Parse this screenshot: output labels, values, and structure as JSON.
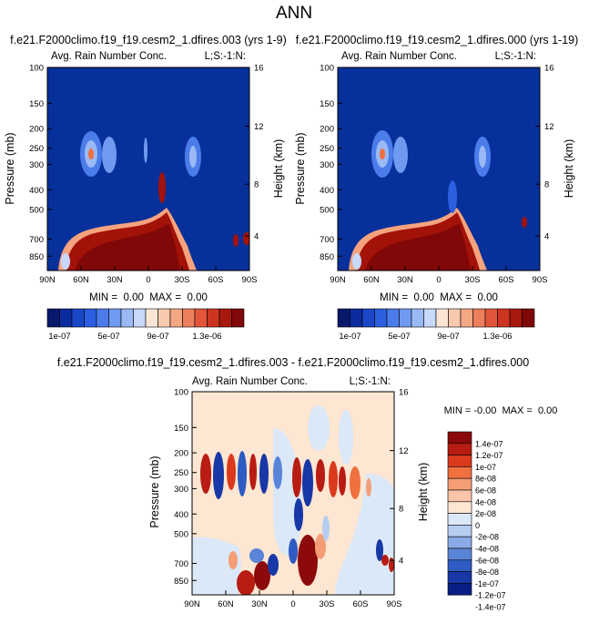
{
  "page_title": "ANN",
  "colors": {
    "rain_bg": "#08309a",
    "diff_bg": "#fde6d2",
    "outline": "#000000"
  },
  "chart_data": [
    {
      "type": "heatmap",
      "title": "f.e21.F2000climo.f19_f19.cesm2_1.dfires.003 (yrs 1-9)",
      "subtitle_left": "Avg. Rain Number Conc.",
      "subtitle_right": "L;S:-1:N:",
      "xlabel": "",
      "ylabel": "Pressure (mb)",
      "ylabel_right": "Height (km)",
      "x_tick_labels": [
        "90N",
        "60N",
        "30N",
        "0",
        "30S",
        "60S",
        "90S"
      ],
      "y_tick_labels": [
        "100",
        "150",
        "200",
        "250",
        "300",
        "400",
        "500",
        "700",
        "850"
      ],
      "y_tick_values": [
        100,
        150,
        200,
        250,
        300,
        400,
        500,
        700,
        850
      ],
      "ylim": [
        1000,
        100
      ],
      "y_scale": "log",
      "right_tick_labels": [
        "16",
        "12",
        "8",
        "4"
      ],
      "stats": "MIN =  0.00  MAX =  0.00",
      "colorbar_labels": [
        "1e-07",
        "5e-07",
        "9e-07",
        "1.3e-06"
      ]
    },
    {
      "type": "heatmap",
      "title": "f.e21.F2000climo.f19_f19.cesm2_1.dfires.000 (yrs 1-19)",
      "subtitle_left": "Avg. Rain Number Conc.",
      "subtitle_right": "L;S:-1:N:",
      "xlabel": "",
      "ylabel": "Pressure (mb)",
      "ylabel_right": "Height (km)",
      "x_tick_labels": [
        "90N",
        "60N",
        "30N",
        "0",
        "30S",
        "60S",
        "90S"
      ],
      "y_tick_labels": [
        "100",
        "150",
        "200",
        "250",
        "300",
        "400",
        "500",
        "700",
        "850"
      ],
      "y_tick_values": [
        100,
        150,
        200,
        250,
        300,
        400,
        500,
        700,
        850
      ],
      "ylim": [
        1000,
        100
      ],
      "y_scale": "log",
      "right_tick_labels": [
        "16",
        "12",
        "8",
        "4"
      ],
      "stats": "MIN =  0.00  MAX =  0.00",
      "colorbar_labels": [
        "1e-07",
        "5e-07",
        "9e-07",
        "1.3e-06"
      ]
    },
    {
      "type": "heatmap",
      "title": "f.e21.F2000climo.f19_f19.cesm2_1.dfires.003 - f.e21.F2000climo.f19_f19.cesm2_1.dfires.000",
      "subtitle_left": "Avg. Rain Number Conc.",
      "subtitle_right": "L;S:-1:N:",
      "xlabel": "",
      "ylabel": "Pressure (mb)",
      "ylabel_right": "Height (km)",
      "x_tick_labels": [
        "90N",
        "60N",
        "30N",
        "0",
        "30S",
        "60S",
        "90S"
      ],
      "y_tick_labels": [
        "100",
        "150",
        "200",
        "250",
        "300",
        "400",
        "500",
        "700",
        "850"
      ],
      "y_tick_values": [
        100,
        150,
        200,
        250,
        300,
        400,
        500,
        700,
        850
      ],
      "ylim": [
        1000,
        100
      ],
      "y_scale": "log",
      "right_tick_labels": [
        "16",
        "12",
        "8",
        "4"
      ],
      "stats": "MIN = -0.00  MAX =  0.00",
      "colorbar_labels": [
        "1.4e-07",
        "1.2e-07",
        "1e-07",
        "8e-08",
        "6e-08",
        "4e-08",
        "2e-08",
        "0",
        "-2e-08",
        "-4e-08",
        "-6e-08",
        "-8e-08",
        "-1e-07",
        "-1.2e-07",
        "-1.4e-07"
      ]
    }
  ],
  "seq_colors": [
    "#08186a",
    "#0b2c9e",
    "#1a46c8",
    "#2c5fe0",
    "#4b7cea",
    "#6f9af0",
    "#9ab9f5",
    "#c7d8fa",
    "#fbe6d6",
    "#f8c9ad",
    "#f4a783",
    "#ee7f5c",
    "#e3553a",
    "#cd3420",
    "#a8180e",
    "#800808"
  ],
  "div_colors": [
    "#8c0a0a",
    "#b81c12",
    "#dc3a1c",
    "#f0703f",
    "#f59e76",
    "#f9c5a8",
    "#fde6d2",
    "#dbe8f8",
    "#b6cdf0",
    "#8aaae6",
    "#5a84d8",
    "#2f5bc4",
    "#1738a6",
    "#0a1f85"
  ]
}
